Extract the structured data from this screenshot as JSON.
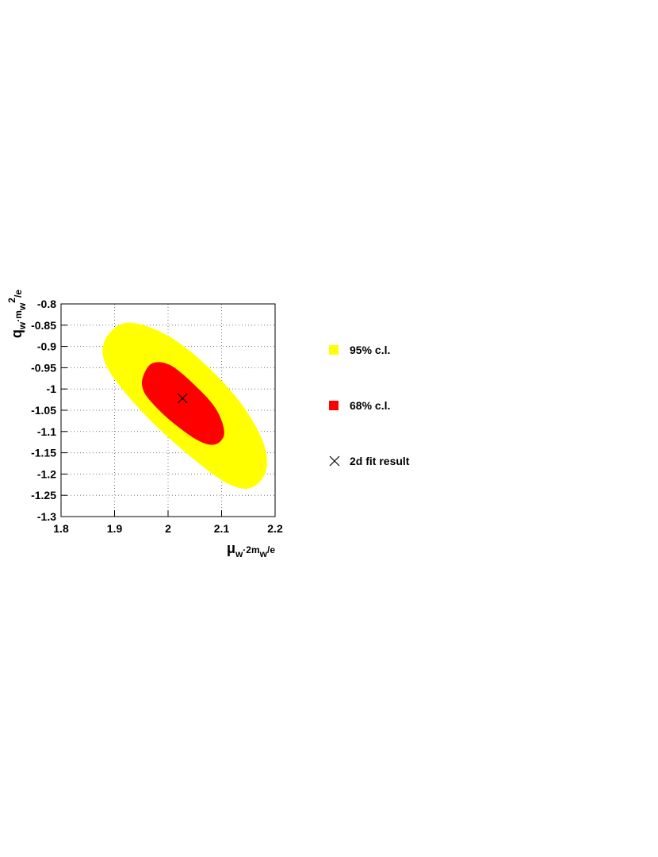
{
  "chart_data": {
    "type": "contour",
    "xlabel": [
      "μ",
      "w",
      "·2m",
      "w",
      "/e"
    ],
    "ylabel": [
      "q",
      "w",
      "·m",
      "w",
      "2",
      "/e"
    ],
    "xlim": [
      1.8,
      2.2
    ],
    "xticks": [
      1.8,
      1.9,
      2,
      2.1,
      2.2
    ],
    "ylim": [
      -1.3,
      -0.8
    ],
    "yticks": [
      -1.3,
      -1.25,
      -1.2,
      -1.15,
      -1.1,
      -1.05,
      -1,
      -0.95,
      -0.9,
      -0.85,
      -0.8
    ],
    "grid": true,
    "series": [
      {
        "name": "95% c.l.",
        "color": "#ffff00",
        "x": [
          1.881,
          1.908,
          1.945,
          2.004,
          2.071,
          2.138,
          2.179,
          2.182,
          2.153,
          2.108,
          2.041,
          1.967,
          1.908,
          1.881
        ],
        "y": [
          -0.888,
          -0.85,
          -0.847,
          -0.878,
          -0.944,
          -1.037,
          -1.13,
          -1.196,
          -1.233,
          -1.22,
          -1.158,
          -1.074,
          -0.99,
          -0.934
        ]
      },
      {
        "name": "68% c.l.",
        "color": "#ff0000",
        "x": [
          1.953,
          1.97,
          2.004,
          2.049,
          2.089,
          2.105,
          2.089,
          2.056,
          2.004,
          1.967,
          1.953
        ],
        "y": [
          -0.972,
          -0.94,
          -0.944,
          -0.99,
          -1.046,
          -1.102,
          -1.13,
          -1.121,
          -1.074,
          -1.028,
          -1.0
        ]
      },
      {
        "name": "2d fit result",
        "color": "#000000",
        "marker": "x",
        "x": [
          2.027
        ],
        "y": [
          -1.022
        ]
      }
    ]
  }
}
